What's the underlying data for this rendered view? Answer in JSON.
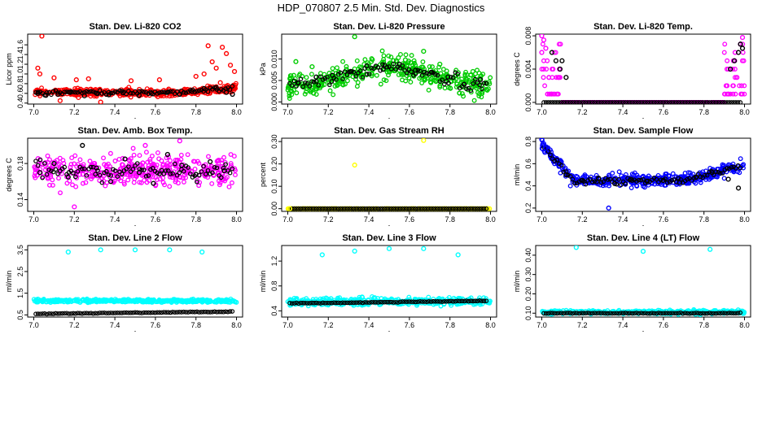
{
  "figure": {
    "title": "HDP_070807  2.5 Min. Std. Dev. Diagnostics"
  },
  "chart_data": [
    {
      "id": "co2",
      "type": "scatter",
      "title": "Stan. Dev. Li-820 CO2",
      "ylabel": "Licor ppm",
      "xlabel": "",
      "xlim": [
        6.97,
        8.03
      ],
      "ylim": [
        0.38,
        1.82
      ],
      "xticks": [
        "7.0",
        "7.2",
        "7.4",
        "7.6",
        "7.8",
        "8.0"
      ],
      "yticks": [
        "0.4",
        "0.6",
        "0.8",
        "1.0",
        "1.2",
        "1.4",
        "1.6"
      ],
      "colors": {
        "primary": "#ff0000",
        "secondary": "#000000"
      },
      "series": [
        {
          "name": "primary",
          "color": "#ff0000",
          "x": [
            7.04,
            7.02,
            7.03,
            7.1,
            7.21,
            7.33,
            7.48,
            7.62,
            7.86,
            7.88,
            7.9,
            7.93,
            7.95,
            7.97,
            7.84,
            7.8,
            7.92,
            7.99,
            7.13,
            7.27
          ],
          "y": [
            1.78,
            1.12,
            1.0,
            0.92,
            0.88,
            0.42,
            0.86,
            0.88,
            1.58,
            1.25,
            1.12,
            1.55,
            1.42,
            1.18,
            1.0,
            0.95,
            0.82,
            1.05,
            0.45,
            0.9
          ]
        },
        {
          "name": "secondary",
          "color": "#000000",
          "x": [
            7.02,
            7.06,
            7.12,
            7.18,
            7.25,
            7.31,
            7.37,
            7.44,
            7.52,
            7.58,
            7.66,
            7.72,
            7.78,
            7.84,
            7.9,
            7.95,
            7.98
          ],
          "y": [
            0.6,
            0.56,
            0.58,
            0.62,
            0.55,
            0.6,
            0.57,
            0.61,
            0.56,
            0.6,
            0.62,
            0.58,
            0.64,
            0.7,
            0.72,
            0.62,
            0.58
          ]
        }
      ]
    },
    {
      "id": "pressure",
      "type": "scatter",
      "title": "Stan. Dev. Li-820 Pressure",
      "ylabel": "kPa",
      "xlabel": "",
      "xlim": [
        6.97,
        8.03
      ],
      "ylim": [
        -0.0005,
        0.0158
      ],
      "xticks": [
        "7.0",
        "7.2",
        "7.4",
        "7.6",
        "7.8",
        "8.0"
      ],
      "yticks": [
        "0.000",
        "0.005",
        "0.010"
      ],
      "colors": {
        "primary": "#00cc00",
        "secondary": "#000000"
      },
      "series": [
        {
          "name": "primary",
          "color": "#00cc00",
          "x": [
            7.33,
            7.67,
            7.12,
            7.04,
            7.58,
            7.75
          ],
          "y": [
            0.0152,
            0.0118,
            0.0082,
            0.0094,
            0.0098,
            0.0088
          ]
        },
        {
          "name": "secondary",
          "color": "#000000",
          "x": [
            7.05,
            7.14,
            7.22,
            7.31,
            7.39,
            7.47,
            7.55,
            7.63,
            7.71,
            7.79,
            7.87,
            7.95
          ],
          "y": [
            0.0045,
            0.0058,
            0.0062,
            0.0071,
            0.0084,
            0.0076,
            0.0088,
            0.0074,
            0.0069,
            0.0058,
            0.0041,
            0.0052
          ]
        }
      ]
    },
    {
      "id": "temp",
      "type": "scatter",
      "title": "Stan. Dev. Li-820 Temp.",
      "ylabel": "degrees C",
      "xlabel": "",
      "xlim": [
        6.97,
        8.03
      ],
      "ylim": [
        -0.0002,
        0.0082
      ],
      "xticks": [
        "7.0",
        "7.2",
        "7.4",
        "7.6",
        "7.8",
        "8.0"
      ],
      "yticks": [
        "0.000",
        "0.004",
        "0.008"
      ],
      "colors": {
        "primary": "#ff00ff",
        "secondary": "#000000"
      },
      "series": [
        {
          "name": "primary",
          "color": "#ff00ff",
          "x": [
            7.0,
            7.01,
            7.02,
            7.0,
            7.99,
            7.98
          ],
          "y": [
            0.008,
            0.0075,
            0.0065,
            0.006,
            0.0078,
            0.007
          ]
        },
        {
          "name": "secondary",
          "color": "#000000",
          "x": [
            7.05,
            7.07,
            7.09,
            7.1,
            7.12,
            7.93,
            7.95,
            7.97,
            7.98,
            7.99
          ],
          "y": [
            0.006,
            0.005,
            0.004,
            0.005,
            0.003,
            0.004,
            0.005,
            0.006,
            0.007,
            0.0065
          ]
        }
      ]
    },
    {
      "id": "ambbox",
      "type": "scatter",
      "title": "Stan. Dev. Amb. Box Temp.",
      "ylabel": "degrees C",
      "xlabel": "",
      "xlim": [
        6.97,
        8.03
      ],
      "ylim": [
        0.127,
        0.208
      ],
      "xticks": [
        "7.0",
        "7.2",
        "7.4",
        "7.6",
        "7.8",
        "8.0"
      ],
      "yticks": [
        "0.14",
        "0.18"
      ],
      "colors": {
        "primary": "#ff00ff",
        "secondary": "#000000"
      },
      "series": [
        {
          "name": "primary",
          "color": "#ff00ff",
          "x": [
            7.72,
            7.55,
            7.2
          ],
          "y": [
            0.205,
            0.2,
            0.132
          ]
        },
        {
          "name": "secondary",
          "color": "#000000",
          "x": [
            7.03,
            7.1,
            7.17,
            7.24,
            7.31,
            7.38,
            7.45,
            7.52,
            7.59,
            7.66,
            7.73,
            7.8,
            7.87,
            7.94
          ],
          "y": [
            0.17,
            0.18,
            0.165,
            0.2,
            0.175,
            0.16,
            0.185,
            0.17,
            0.158,
            0.19,
            0.178,
            0.168,
            0.182,
            0.172
          ]
        }
      ]
    },
    {
      "id": "rh",
      "type": "scatter",
      "title": "Stan. Dev. Gas Stream RH",
      "ylabel": "percent",
      "xlabel": "",
      "xlim": [
        6.97,
        8.03
      ],
      "ylim": [
        -0.012,
        0.315
      ],
      "xticks": [
        "7.0",
        "7.2",
        "7.4",
        "7.6",
        "7.8",
        "8.0"
      ],
      "yticks": [
        "0.00",
        "0.10",
        "0.20",
        "0.30"
      ],
      "colors": {
        "primary": "#ffff00",
        "secondary": "#000000"
      },
      "series": [
        {
          "name": "primary",
          "color": "#ffff00",
          "x": [
            7.67,
            7.33,
            7.01
          ],
          "y": [
            0.305,
            0.195,
            0.0
          ]
        },
        {
          "name": "secondary",
          "color": "#000000",
          "x": [],
          "y": []
        }
      ]
    },
    {
      "id": "sampleflow",
      "type": "scatter",
      "title": "Stan. Dev. Sample Flow",
      "ylabel": "ml/min",
      "xlabel": "",
      "xlim": [
        6.97,
        8.03
      ],
      "ylim": [
        0.17,
        0.83
      ],
      "xticks": [
        "7.0",
        "7.2",
        "7.4",
        "7.6",
        "7.8",
        "8.0"
      ],
      "yticks": [
        "0.2",
        "0.4",
        "0.6",
        "0.8"
      ],
      "colors": {
        "primary": "#0000ff",
        "secondary": "#000000"
      },
      "series": [
        {
          "name": "primary",
          "color": "#0000ff",
          "x": [
            7.33,
            7.0,
            7.01,
            7.02
          ],
          "y": [
            0.2,
            0.82,
            0.78,
            0.74
          ]
        },
        {
          "name": "secondary",
          "color": "#000000",
          "x": [
            7.12,
            7.2,
            7.28,
            7.36,
            7.44,
            7.52,
            7.6,
            7.68,
            7.76,
            7.84,
            7.92,
            7.97
          ],
          "y": [
            0.5,
            0.45,
            0.47,
            0.42,
            0.46,
            0.44,
            0.45,
            0.43,
            0.48,
            0.52,
            0.46,
            0.38
          ]
        }
      ]
    },
    {
      "id": "line2",
      "type": "scatter",
      "title": "Stan. Dev. Line 2 Flow",
      "ylabel": "ml/min",
      "xlabel": "",
      "xlim": [
        6.97,
        8.03
      ],
      "ylim": [
        0.4,
        3.7
      ],
      "xticks": [
        "7.0",
        "7.2",
        "7.4",
        "7.6",
        "7.8",
        "8.0"
      ],
      "yticks": [
        "0.5",
        "1.5",
        "2.5",
        "3.5"
      ],
      "colors": {
        "primary": "#00ffff",
        "secondary": "#000000"
      },
      "series": [
        {
          "name": "primary",
          "color": "#00ffff",
          "x": [
            7.17,
            7.33,
            7.5,
            7.67,
            7.83
          ],
          "y": [
            3.4,
            3.5,
            3.5,
            3.5,
            3.4
          ]
        },
        {
          "name": "secondary",
          "color": "#000000",
          "x": [],
          "y": []
        }
      ]
    },
    {
      "id": "line3",
      "type": "scatter",
      "title": "Stan. Dev. Line 3 Flow",
      "ylabel": "ml/min",
      "xlabel": "",
      "xlim": [
        6.97,
        8.03
      ],
      "ylim": [
        0.3,
        1.45
      ],
      "xticks": [
        "7.0",
        "7.2",
        "7.4",
        "7.6",
        "7.8",
        "8.0"
      ],
      "yticks": [
        "0.4",
        "0.8",
        "1.2"
      ],
      "colors": {
        "primary": "#00ffff",
        "secondary": "#000000"
      },
      "series": [
        {
          "name": "primary",
          "color": "#00ffff",
          "x": [
            7.17,
            7.33,
            7.5,
            7.67,
            7.84
          ],
          "y": [
            1.3,
            1.36,
            1.4,
            1.4,
            1.3
          ]
        },
        {
          "name": "secondary",
          "color": "#000000",
          "x": [],
          "y": []
        }
      ]
    },
    {
      "id": "line4",
      "type": "scatter",
      "title": "Stan. Dev. Line 4 (LT) Flow",
      "ylabel": "ml/min",
      "xlabel": "",
      "xlim": [
        6.97,
        8.03
      ],
      "ylim": [
        0.08,
        0.45
      ],
      "xticks": [
        "7.0",
        "7.2",
        "7.4",
        "7.6",
        "7.8",
        "8.0"
      ],
      "yticks": [
        "0.10",
        "0.20",
        "0.30",
        "0.40"
      ],
      "colors": {
        "primary": "#00ffff",
        "secondary": "#000000"
      },
      "series": [
        {
          "name": "primary",
          "color": "#00ffff",
          "x": [
            7.17,
            7.5,
            7.83
          ],
          "y": [
            0.44,
            0.42,
            0.43
          ]
        },
        {
          "name": "secondary",
          "color": "#000000",
          "x": [],
          "y": []
        }
      ]
    }
  ]
}
